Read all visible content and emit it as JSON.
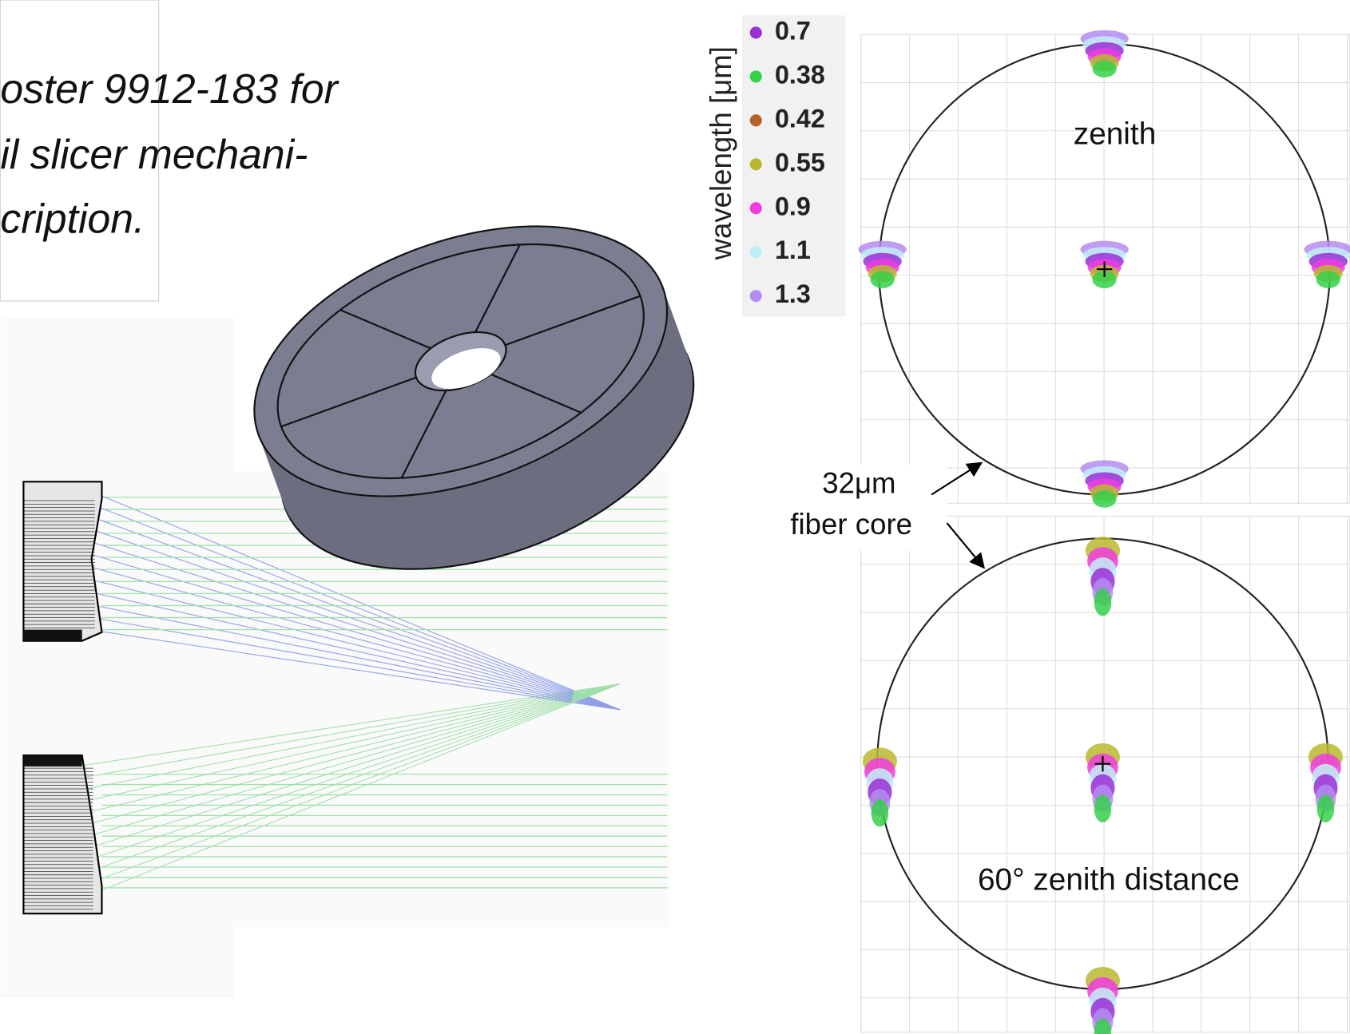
{
  "caption": {
    "lines": [
      "oster  9912-183  for",
      "il slicer   mechani-",
      "cription."
    ]
  },
  "legend": {
    "title": "wavelength [μm]",
    "items": [
      {
        "label": "0.7",
        "color": "#9b2fd6"
      },
      {
        "label": "0.38",
        "color": "#35d04a"
      },
      {
        "label": "0.42",
        "color": "#b5652a"
      },
      {
        "label": "0.55",
        "color": "#b9b92e"
      },
      {
        "label": "0.9",
        "color": "#f03ce0"
      },
      {
        "label": "1.1",
        "color": "#bfeef6"
      },
      {
        "label": "1.3",
        "color": "#b48cf0"
      }
    ]
  },
  "spot_diagrams": {
    "panels": [
      {
        "label": "zenith"
      },
      {
        "label": "60° zenith distance"
      }
    ]
  },
  "annotation": {
    "lines": [
      "32μm",
      "fiber core"
    ]
  }
}
